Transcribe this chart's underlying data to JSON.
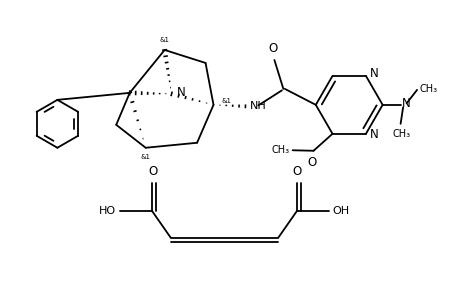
{
  "bg": "#ffffff",
  "lc": "#000000",
  "lw": 1.3,
  "fw": 4.49,
  "fh": 2.99,
  "dpi": 100,
  "xlim": [
    0,
    9.0
  ],
  "ylim": [
    0,
    5.97
  ]
}
